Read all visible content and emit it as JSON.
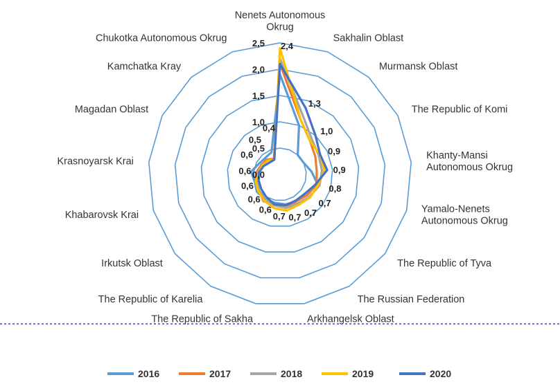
{
  "chart_data": {
    "type": "radar",
    "categories": [
      "Nenets Autonomous Okrug",
      "Sakhalin Oblast",
      "Murmansk Oblast",
      "The Republic of Komi",
      "Khanty-Mansi Autonomous Okrug",
      "Yamalo-Nenets Autonomous Okrug",
      "The Republic of Tyva",
      "The Russian Federation",
      "Arkhangelsk Oblast",
      "The Republic of Sakha",
      "The Republic of Karelia",
      "Irkutsk Oblast",
      "Khabarovsk Krai",
      "Krasnoyarsk Krai",
      "Magadan Oblast",
      "Kamchatka Kray",
      "Chukotka Autonomous Okrug"
    ],
    "category_lines": [
      [
        "Nenets Autonomous",
        "Okrug"
      ],
      [
        "Sakhalin Oblast"
      ],
      [
        "Murmansk Oblast"
      ],
      [
        "The Republic of Komi"
      ],
      [
        "Khanty-Mansi",
        "Autonomous Okrug"
      ],
      [
        "Yamalo-Nenets",
        "Autonomous Okrug"
      ],
      [
        "The Republic of Tyva"
      ],
      [
        "The Russian Federation"
      ],
      [
        "Arkhangelsk Oblast"
      ],
      [
        "The Republic of Sakha"
      ],
      [
        "The Republic of Karelia"
      ],
      [
        "Irkutsk Oblast"
      ],
      [
        "Khabarovsk Krai"
      ],
      [
        "Krasnoyarsk Krai"
      ],
      [
        "Magadan Oblast"
      ],
      [
        "Kamchatka Kray"
      ],
      [
        "Chukotka Autonomous Okrug"
      ]
    ],
    "axis": {
      "min": 0,
      "max": 2.5,
      "ticks": [
        "0,0",
        "0,5",
        "1,0",
        "1,5",
        "2,0",
        "2,5"
      ]
    },
    "data_labels": [
      "2,4",
      "1,3",
      "1,0",
      "0,9",
      "0,9",
      "0,8",
      "0,7",
      "0,7",
      "0,7",
      "0,7",
      "0,6",
      "0,6",
      "0,6",
      "0,6",
      "0,6",
      "0,5",
      "0,4"
    ],
    "series": [
      {
        "name": "2016",
        "color": "#5B9BD5",
        "values": [
          1.9,
          1.0,
          0.5,
          0.5,
          0.6,
          0.75,
          0.6,
          0.6,
          0.58,
          0.55,
          0.55,
          0.55,
          0.5,
          0.55,
          0.45,
          0.42,
          0.45
        ]
      },
      {
        "name": "2017",
        "color": "#ED7D31",
        "values": [
          2.1,
          1.1,
          0.85,
          0.75,
          0.7,
          0.72,
          0.65,
          0.6,
          0.65,
          0.58,
          0.6,
          0.5,
          0.48,
          0.45,
          0.4,
          0.38,
          0.32
        ]
      },
      {
        "name": "2018",
        "color": "#A5A5A5",
        "values": [
          2.2,
          1.2,
          0.9,
          0.82,
          0.8,
          0.78,
          0.7,
          0.65,
          0.65,
          0.6,
          0.55,
          0.5,
          0.45,
          0.42,
          0.38,
          0.35,
          0.3
        ]
      },
      {
        "name": "2019",
        "color": "#FFC000",
        "values": [
          2.4,
          1.1,
          0.85,
          0.85,
          0.85,
          0.75,
          0.72,
          0.68,
          0.7,
          0.65,
          0.58,
          0.52,
          0.48,
          0.4,
          0.38,
          0.35,
          0.3
        ]
      },
      {
        "name": "2020",
        "color": "#4472C4",
        "values": [
          2.1,
          1.35,
          1.0,
          0.85,
          0.9,
          0.7,
          0.6,
          0.58,
          0.6,
          0.58,
          0.5,
          0.45,
          0.42,
          0.4,
          0.35,
          0.3,
          0.3
        ]
      }
    ],
    "grid": true,
    "legend_position": "bottom"
  }
}
